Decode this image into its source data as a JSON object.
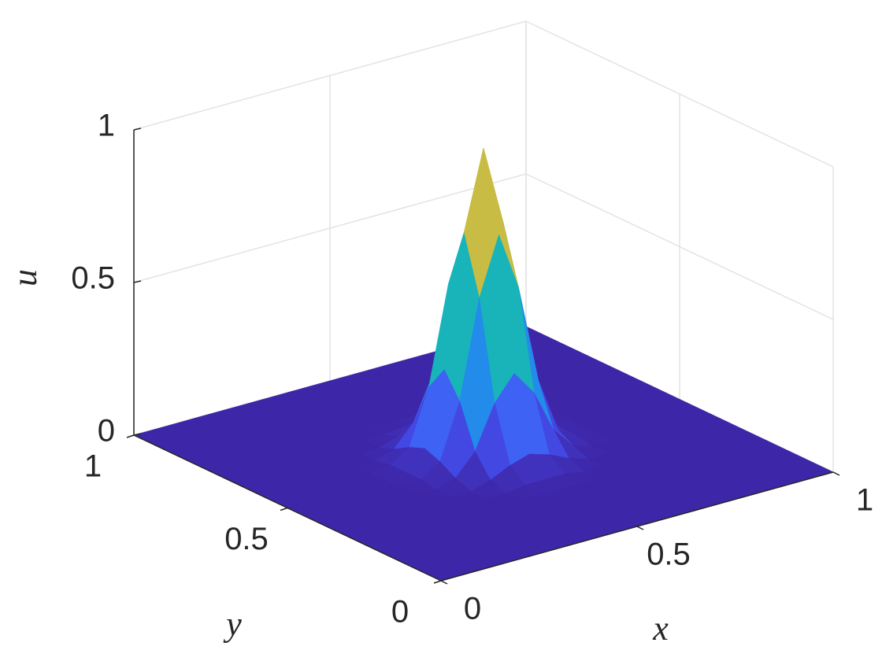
{
  "chart_data": {
    "type": "surface",
    "x_label": "x",
    "y_label": "y",
    "z_label": "u",
    "colormap": "parula",
    "grid": true,
    "xlim": [
      0,
      1
    ],
    "ylim": [
      0,
      1
    ],
    "zlim": [
      0,
      1
    ],
    "xticks": [
      0,
      0.5,
      1
    ],
    "yticks": [
      0,
      0.5,
      1
    ],
    "zticks": [
      0,
      0.5,
      1
    ],
    "x": [
      0,
      0.05,
      0.1,
      0.15,
      0.2,
      0.25,
      0.3,
      0.35,
      0.4,
      0.45,
      0.5,
      0.55,
      0.6,
      0.65,
      0.7,
      0.75,
      0.8,
      0.85,
      0.9,
      0.95,
      1
    ],
    "y": [
      0,
      0.05,
      0.1,
      0.15,
      0.2,
      0.25,
      0.3,
      0.35,
      0.4,
      0.45,
      0.5,
      0.55,
      0.6,
      0.65,
      0.7,
      0.75,
      0.8,
      0.85,
      0.9,
      0.95,
      1
    ],
    "z": [
      [
        0,
        0,
        0,
        0,
        0,
        0,
        0,
        0,
        0,
        0,
        0,
        0,
        0,
        0,
        0,
        0,
        0,
        0,
        0,
        0,
        0
      ],
      [
        0,
        0,
        0,
        0,
        0,
        0,
        0,
        0,
        0,
        0,
        0,
        0,
        0,
        0,
        0,
        0,
        0,
        0,
        0,
        0,
        0
      ],
      [
        0,
        0,
        0,
        0,
        0,
        0,
        0,
        0,
        0,
        0,
        0,
        0,
        0,
        0,
        0,
        0,
        0,
        0,
        0,
        0,
        0
      ],
      [
        0,
        0,
        0,
        0,
        0,
        0,
        0,
        0,
        0,
        0,
        0,
        0,
        0,
        0,
        0,
        0,
        0,
        0,
        0,
        0,
        0
      ],
      [
        0,
        0,
        0,
        0,
        0,
        0,
        0,
        0,
        0,
        0,
        0,
        0,
        0,
        0,
        0,
        0,
        0,
        0,
        0,
        0,
        0
      ],
      [
        0,
        0,
        0,
        0,
        0,
        0,
        0,
        0,
        0,
        0,
        0,
        0,
        0,
        0,
        0,
        0,
        0,
        0,
        0,
        0,
        0
      ],
      [
        0,
        0,
        0,
        0,
        0,
        0,
        0,
        0,
        0,
        0.01,
        0.01,
        0.01,
        0,
        0,
        0,
        0,
        0,
        0,
        0,
        0,
        0
      ],
      [
        0,
        0,
        0,
        0,
        0,
        0,
        0,
        0,
        0.02,
        0.05,
        0.07,
        0.05,
        0.02,
        0,
        0,
        0,
        0,
        0,
        0,
        0,
        0
      ],
      [
        0,
        0,
        0,
        0,
        0,
        0,
        0,
        0.02,
        0.09,
        0.23,
        0.31,
        0.23,
        0.09,
        0.02,
        0,
        0,
        0,
        0,
        0,
        0,
        0
      ],
      [
        0,
        0,
        0,
        0,
        0,
        0,
        0.01,
        0.05,
        0.23,
        0.55,
        0.74,
        0.55,
        0.23,
        0.05,
        0.01,
        0,
        0,
        0,
        0,
        0,
        0
      ],
      [
        0,
        0,
        0,
        0,
        0,
        0,
        0.01,
        0.07,
        0.31,
        0.74,
        1,
        0.74,
        0.31,
        0.07,
        0.01,
        0,
        0,
        0,
        0,
        0,
        0
      ],
      [
        0,
        0,
        0,
        0,
        0,
        0,
        0.01,
        0.05,
        0.23,
        0.55,
        0.74,
        0.55,
        0.23,
        0.05,
        0.01,
        0,
        0,
        0,
        0,
        0,
        0
      ],
      [
        0,
        0,
        0,
        0,
        0,
        0,
        0,
        0.02,
        0.09,
        0.23,
        0.31,
        0.23,
        0.09,
        0.02,
        0,
        0,
        0,
        0,
        0,
        0,
        0
      ],
      [
        0,
        0,
        0,
        0,
        0,
        0,
        0,
        0,
        0.02,
        0.05,
        0.07,
        0.05,
        0.02,
        0,
        0,
        0,
        0,
        0,
        0,
        0,
        0
      ],
      [
        0,
        0,
        0,
        0,
        0,
        0,
        0,
        0,
        0,
        0.01,
        0.01,
        0.01,
        0,
        0,
        0,
        0,
        0,
        0,
        0,
        0,
        0
      ],
      [
        0,
        0,
        0,
        0,
        0,
        0,
        0,
        0,
        0,
        0,
        0,
        0,
        0,
        0,
        0,
        0,
        0,
        0,
        0,
        0,
        0
      ],
      [
        0,
        0,
        0,
        0,
        0,
        0,
        0,
        0,
        0,
        0,
        0,
        0,
        0,
        0,
        0,
        0,
        0,
        0,
        0,
        0,
        0
      ],
      [
        0,
        0,
        0,
        0,
        0,
        0,
        0,
        0,
        0,
        0,
        0,
        0,
        0,
        0,
        0,
        0,
        0,
        0,
        0,
        0,
        0
      ],
      [
        0,
        0,
        0,
        0,
        0,
        0,
        0,
        0,
        0,
        0,
        0,
        0,
        0,
        0,
        0,
        0,
        0,
        0,
        0,
        0,
        0
      ],
      [
        0,
        0,
        0,
        0,
        0,
        0,
        0,
        0,
        0,
        0,
        0,
        0,
        0,
        0,
        0,
        0,
        0,
        0,
        0,
        0,
        0
      ],
      [
        0,
        0,
        0,
        0,
        0,
        0,
        0,
        0,
        0,
        0,
        0,
        0,
        0,
        0,
        0,
        0,
        0,
        0,
        0,
        0,
        0
      ]
    ]
  }
}
